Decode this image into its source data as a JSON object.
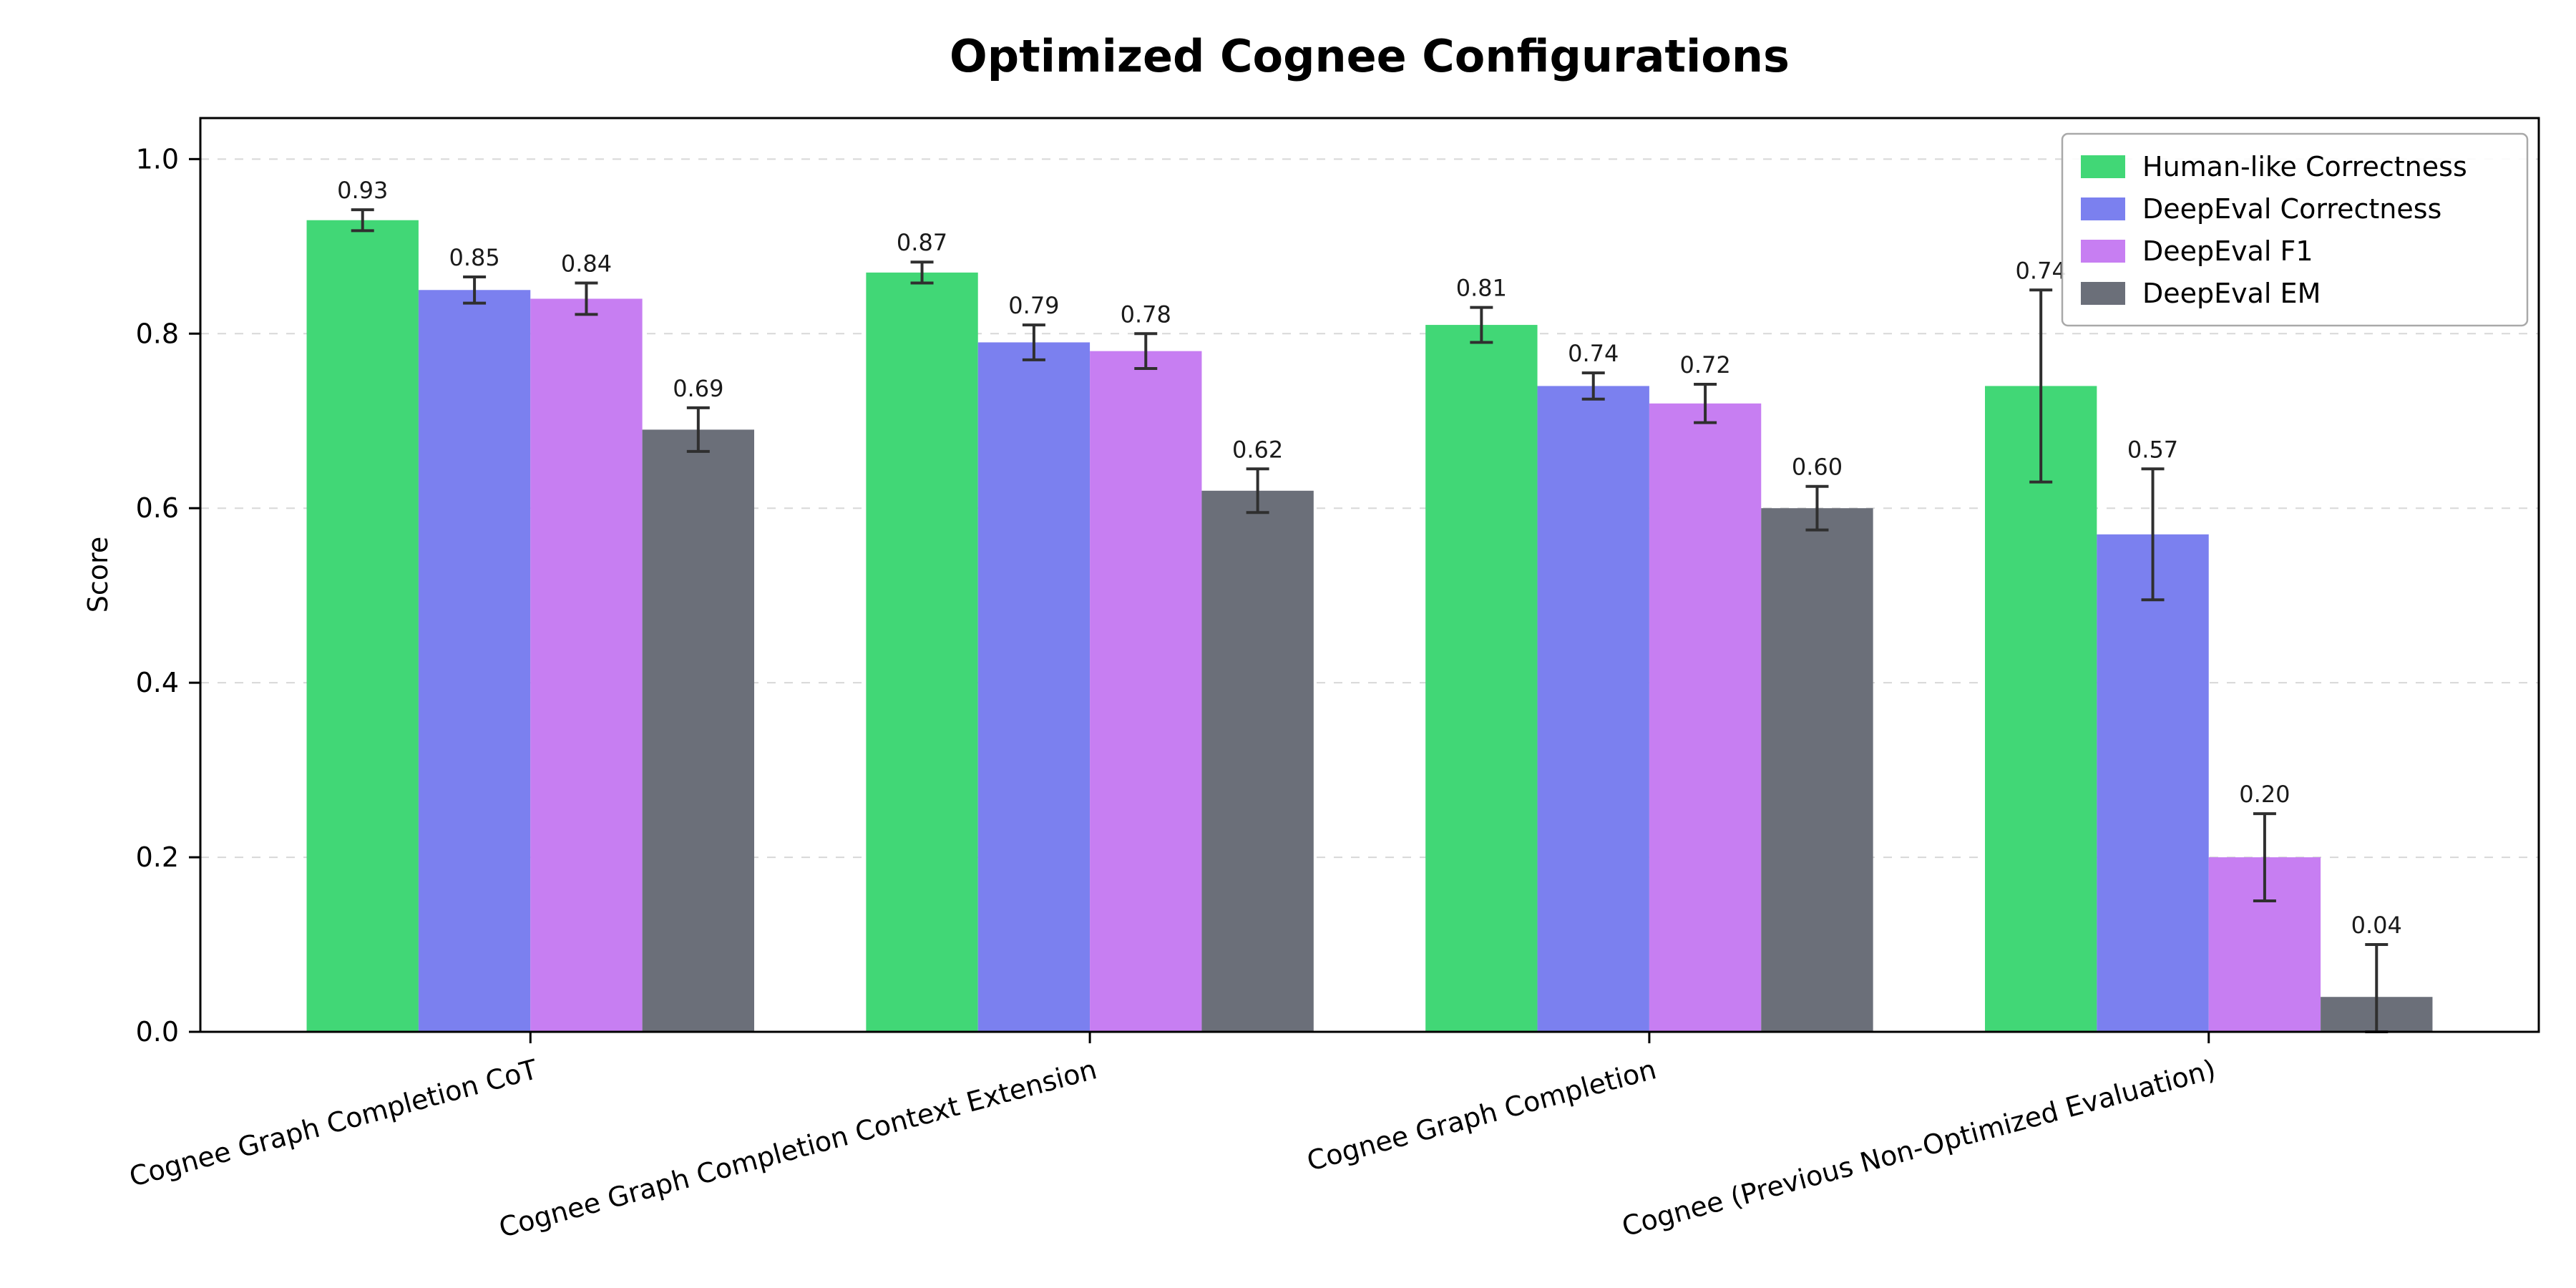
{
  "chart_data": {
    "type": "bar",
    "title": "Optimized Cognee Configurations",
    "xlabel": "",
    "ylabel": "Score",
    "ylim": [
      0.0,
      1.047
    ],
    "yticks": [
      0.0,
      0.2,
      0.4,
      0.6,
      0.8,
      1.0
    ],
    "grid": "horizontal-dashed",
    "legend_position": "upper-right",
    "categories": [
      "Cognee Graph Completion CoT",
      "Cognee Graph Completion Context Extension",
      "Cognee Graph Completion",
      "Cognee (Previous Non-Optimized Evaluation)"
    ],
    "series": [
      {
        "name": "Human-like Correctness",
        "color": "#41d776",
        "values": [
          0.93,
          0.87,
          0.81,
          0.74
        ],
        "errors": [
          0.012,
          0.012,
          0.02,
          0.11
        ]
      },
      {
        "name": "DeepEval Correctness",
        "color": "#7b80ef",
        "values": [
          0.85,
          0.79,
          0.74,
          0.57
        ],
        "errors": [
          0.015,
          0.02,
          0.015,
          0.075
        ]
      },
      {
        "name": "DeepEval F1",
        "color": "#c77ef2",
        "values": [
          0.84,
          0.78,
          0.72,
          0.2
        ],
        "errors": [
          0.018,
          0.02,
          0.022,
          0.05
        ]
      },
      {
        "name": "DeepEval EM",
        "color": "#6b6f79",
        "values": [
          0.69,
          0.62,
          0.6,
          0.04
        ],
        "errors": [
          0.025,
          0.025,
          0.025,
          0.06
        ]
      }
    ],
    "bar_value_labels": [
      [
        "0.93",
        "0.87",
        "0.81",
        "0.74"
      ],
      [
        "0.85",
        "0.79",
        "0.74",
        "0.57"
      ],
      [
        "0.84",
        "0.78",
        "0.72",
        "0.20"
      ],
      [
        "0.69",
        "0.62",
        "0.60",
        "0.04"
      ]
    ],
    "error_bar_color": "#2f2f2f",
    "axis_color": "#000000",
    "grid_color": "#d8d8d8",
    "background": "#ffffff"
  }
}
